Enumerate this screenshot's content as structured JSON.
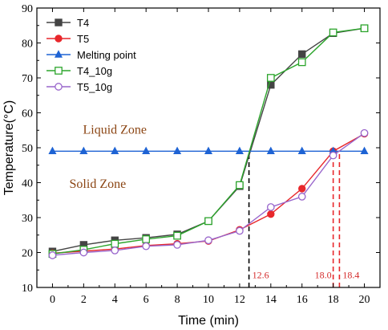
{
  "chart_data": {
    "type": "line",
    "xlabel": "Time (min)",
    "ylabel": "Temperature(°C)",
    "xlim": [
      -1,
      21
    ],
    "ylim": [
      10,
      90
    ],
    "xticks": [
      0,
      2,
      4,
      6,
      8,
      10,
      12,
      14,
      16,
      18,
      20
    ],
    "yticks": [
      10,
      20,
      30,
      40,
      50,
      60,
      70,
      80,
      90
    ],
    "x": [
      0,
      2,
      4,
      6,
      8,
      10,
      12,
      14,
      16,
      18,
      20
    ],
    "legend_position": "top-left",
    "series": [
      {
        "name": "T4",
        "color": "#444444",
        "marker": "square-filled",
        "values": [
          20.3,
          22.2,
          23.5,
          24.2,
          25.2,
          29.0,
          39.0,
          68.0,
          76.8,
          82.8,
          84.2
        ]
      },
      {
        "name": "T5",
        "color": "#e8272b",
        "marker": "circle-filled",
        "values": [
          19.8,
          20.4,
          21.0,
          22.0,
          22.5,
          23.3,
          26.5,
          31.0,
          38.3,
          49.0,
          54.0
        ]
      },
      {
        "name": "Melting point",
        "color": "#1e63d4",
        "marker": "triangle-filled",
        "values": [
          49,
          49,
          49,
          49,
          49,
          49,
          49,
          49,
          49,
          49,
          49
        ]
      },
      {
        "name": "T4_10g",
        "color": "#2ca52c",
        "marker": "square-open",
        "values": [
          19.6,
          20.8,
          22.5,
          23.8,
          24.8,
          29.0,
          39.3,
          70.0,
          74.5,
          83.0,
          84.2
        ]
      },
      {
        "name": "T5_10g",
        "color": "#9966cc",
        "marker": "circle-open",
        "values": [
          19.2,
          20.0,
          20.6,
          21.8,
          22.2,
          23.5,
          26.2,
          33.0,
          36.0,
          47.8,
          54.2
        ]
      }
    ],
    "zone_labels": [
      {
        "text": "Liquid Zone",
        "x": 4,
        "y": 54
      },
      {
        "text": "Solid Zone",
        "x": 2.9,
        "y": 38.5
      }
    ],
    "vlines": [
      {
        "x": 12.6,
        "color": "#000000",
        "label": "12.6"
      },
      {
        "x": 18.0,
        "color": "#e8272b",
        "label": "18.0"
      },
      {
        "x": 18.4,
        "color": "#e8272b",
        "label": "18.4"
      }
    ]
  }
}
